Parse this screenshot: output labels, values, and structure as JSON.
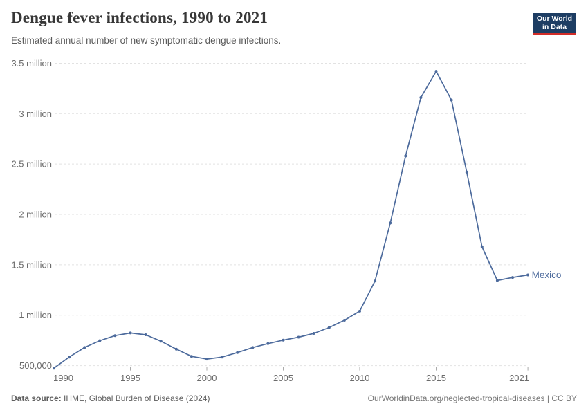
{
  "header": {
    "title": "Dengue fever infections, 1990 to 2021",
    "subtitle": "Estimated annual number of new symptomatic dengue infections."
  },
  "logo": {
    "line1": "Our World",
    "line2": "in Data",
    "bg_color": "#1d3d63",
    "bar_color": "#d22d28"
  },
  "chart_data": {
    "type": "line",
    "title": "Dengue fever infections, 1990 to 2021",
    "xlabel": "",
    "ylabel": "",
    "grid": true,
    "legend_position": "line-end-label",
    "x": [
      1990,
      1991,
      1992,
      1993,
      1994,
      1995,
      1996,
      1997,
      1998,
      1999,
      2000,
      2001,
      2002,
      2003,
      2004,
      2005,
      2006,
      2007,
      2008,
      2009,
      2010,
      2011,
      2012,
      2013,
      2014,
      2015,
      2016,
      2017,
      2018,
      2019,
      2020,
      2021
    ],
    "series": [
      {
        "name": "Mexico",
        "color": "#4c6a9c",
        "values": [
          475000,
          585000,
          680000,
          748000,
          798000,
          824000,
          806000,
          742000,
          664000,
          592000,
          565000,
          585000,
          630000,
          680000,
          718000,
          753000,
          782000,
          820000,
          878000,
          950000,
          1040000,
          1340000,
          1915000,
          2580000,
          3160000,
          3420000,
          3135000,
          2420000,
          1678000,
          1345000,
          1375000,
          1400000
        ]
      }
    ],
    "xticks": [
      1990,
      1995,
      2000,
      2005,
      2010,
      2015,
      2021
    ],
    "yticks": [
      {
        "value": 500000,
        "label": "500,000"
      },
      {
        "value": 1000000,
        "label": "1 million"
      },
      {
        "value": 1500000,
        "label": "1.5 million"
      },
      {
        "value": 2000000,
        "label": "2 million"
      },
      {
        "value": 2500000,
        "label": "2.5 million"
      },
      {
        "value": 3000000,
        "label": "3 million"
      },
      {
        "value": 3500000,
        "label": "3.5 million"
      }
    ],
    "xlim": [
      1990,
      2021
    ],
    "ylim": [
      500000,
      3500000
    ],
    "grid_color": "#e2e2e2",
    "axis_text_color": "#6b6b6b",
    "tick_color": "#ababab"
  },
  "footer": {
    "datasource_label": "Data source:",
    "datasource_value": " IHME, Global Burden of Disease (2024)",
    "rights": "OurWorldinData.org/neglected-tropical-diseases | CC BY"
  }
}
